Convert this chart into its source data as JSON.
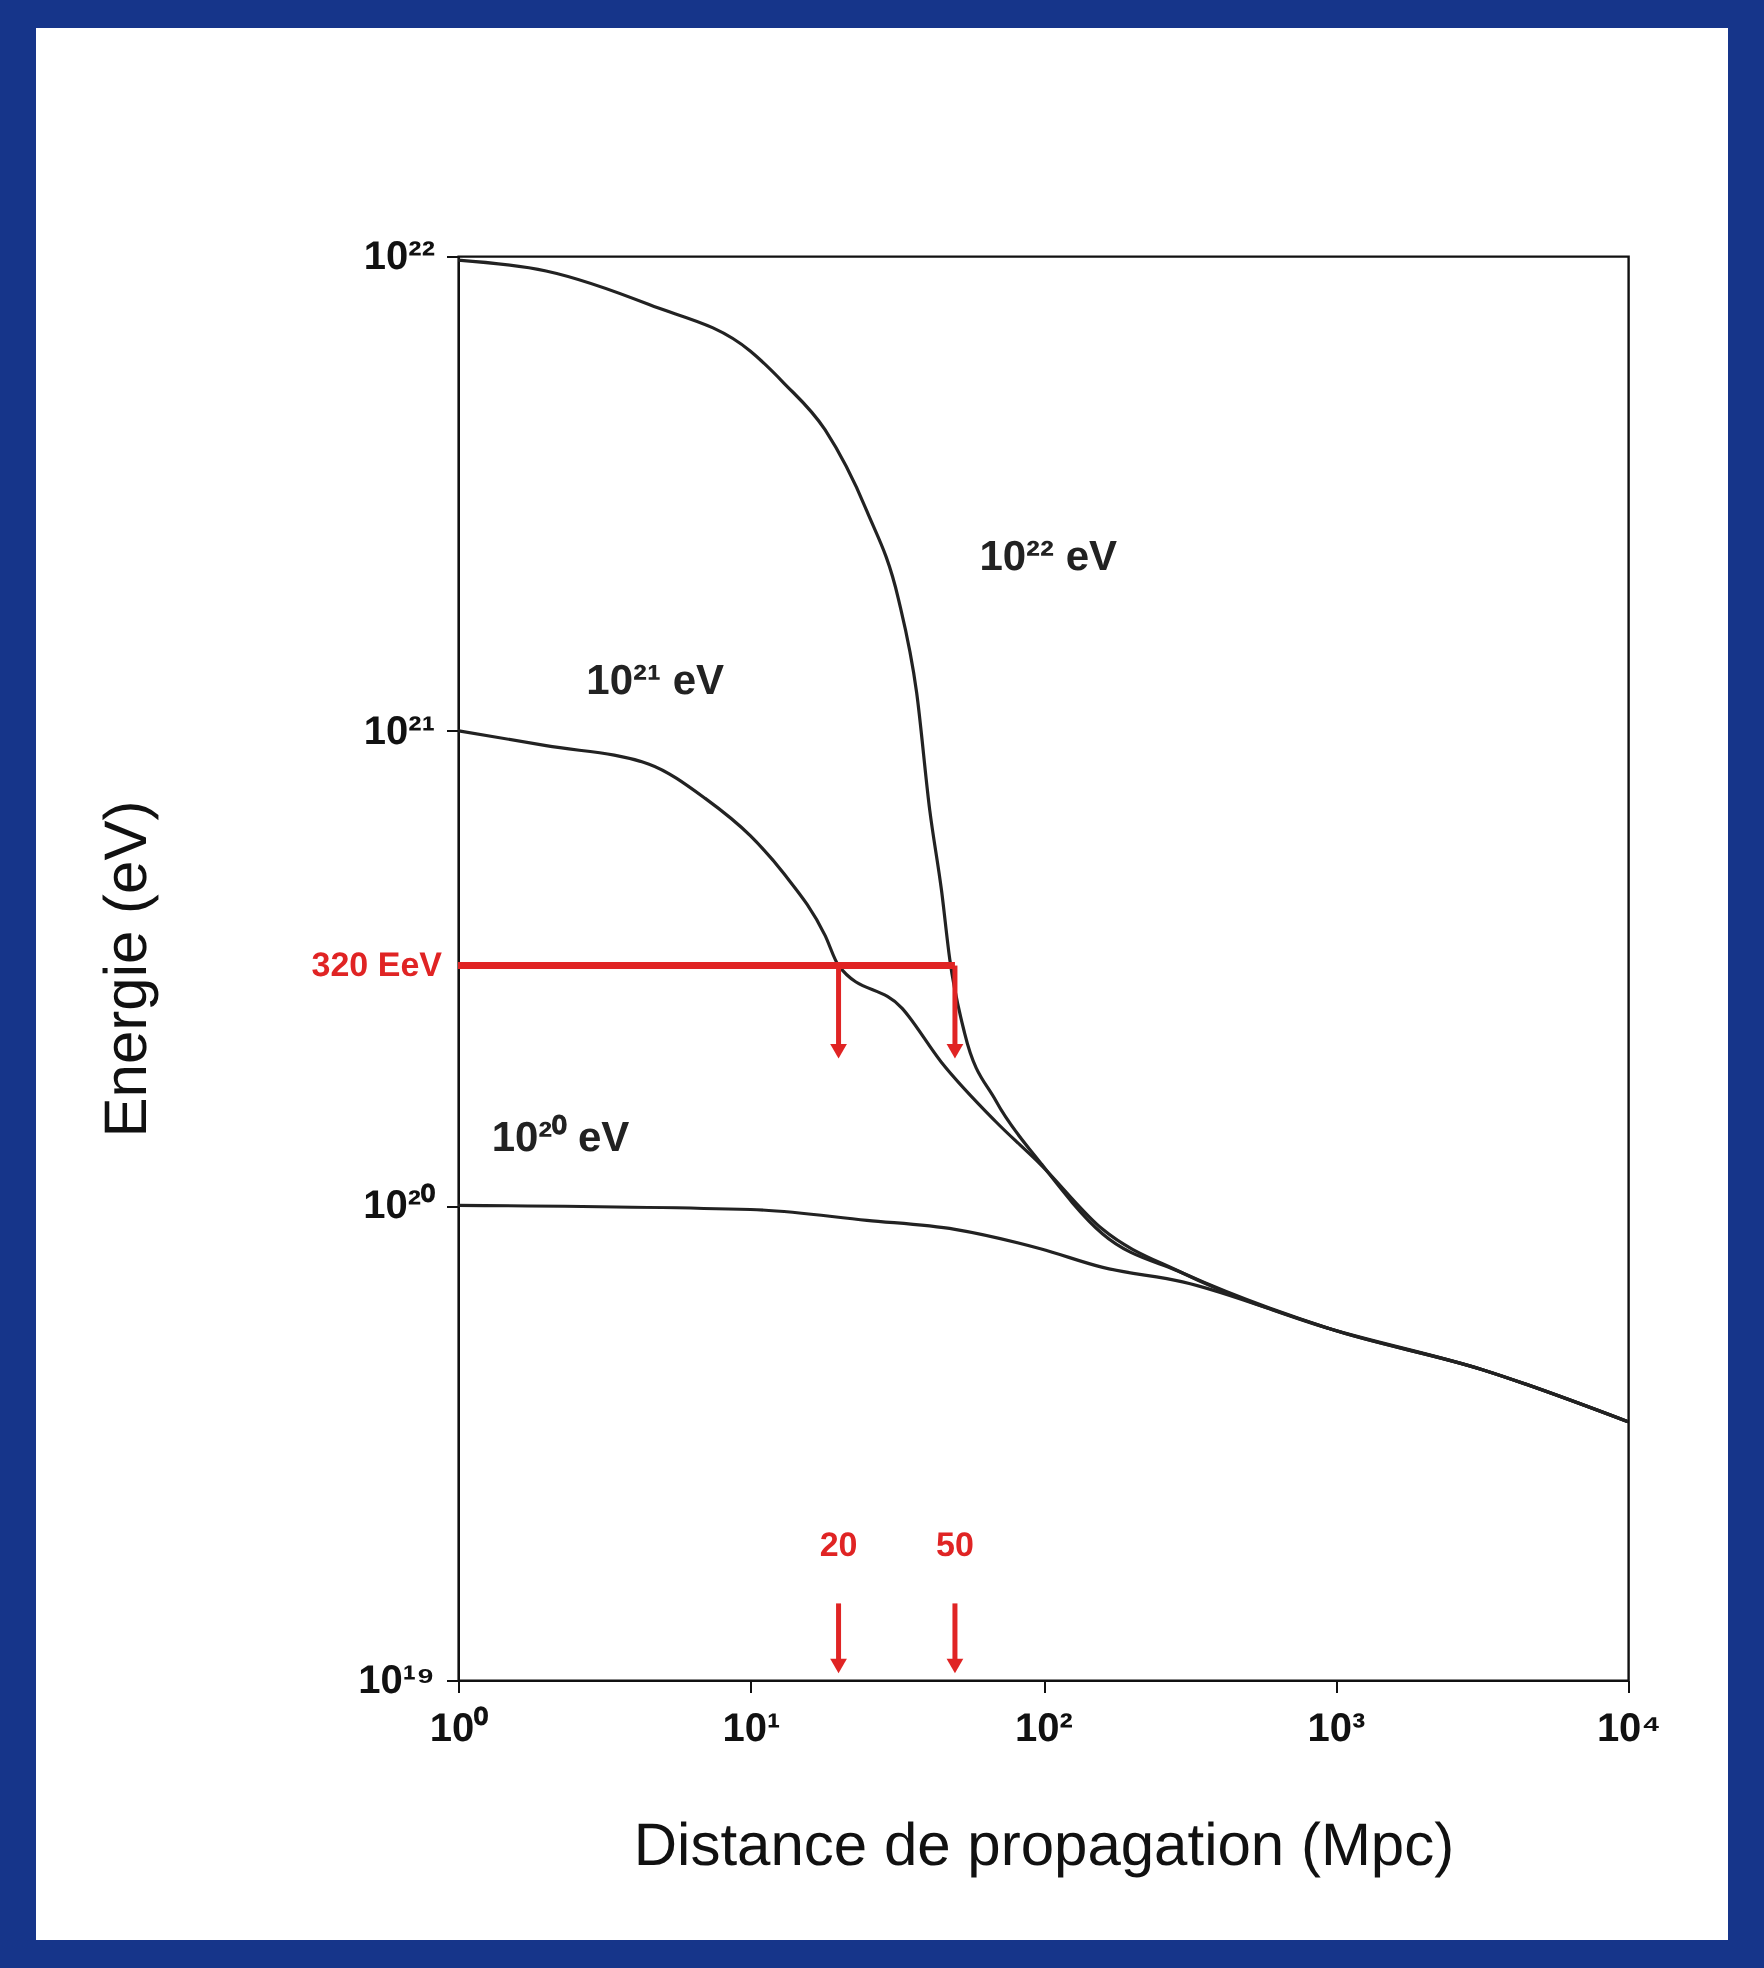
{
  "chart_data": {
    "type": "line",
    "xlabel": "Distance de propagation (Mpc)",
    "ylabel": "Energie (eV)",
    "log": "xy",
    "grid": false,
    "marker": "none",
    "line_style": "solid",
    "xlim": [
      1,
      10000
    ],
    "ylim": [
      1e+19,
      1e+22
    ],
    "xticks": [
      {
        "value": 1,
        "label": "10⁰"
      },
      {
        "value": 10,
        "label": "10¹"
      },
      {
        "value": 100,
        "label": "10²"
      },
      {
        "value": 1000,
        "label": "10³"
      },
      {
        "value": 10000,
        "label": "10⁴"
      }
    ],
    "yticks": [
      {
        "value": 1e+19,
        "label": "10¹⁹"
      },
      {
        "value": 1e+20,
        "label": "10²⁰"
      },
      {
        "value": 1e+21,
        "label": "10²¹"
      },
      {
        "value": 1e+22,
        "label": "10²²"
      }
    ],
    "series": [
      {
        "name": "10²² eV",
        "color": "#222222",
        "x": [
          1,
          2,
          4.5,
          10,
          13,
          18,
          25,
          32,
          37,
          41,
          45,
          48,
          54,
          69,
          98,
          160,
          300,
          950,
          3200,
          10000
        ],
        "values": [
          9.8e+21,
          9.3e+21,
          7.9e+21,
          6.3e+21,
          5.4e+21,
          4.3e+21,
          2.9e+21,
          1.9e+21,
          1.2e+21,
          6.8e+20,
          4.6e+20,
          3.3e+20,
          2.3e+20,
          1.66e+20,
          1.23e+20,
          8.7e+19,
          7.2e+19,
          5.5e+19,
          4.5e+19,
          3.5e+19
        ]
      },
      {
        "name": "10²¹ eV",
        "color": "#222222",
        "x": [
          1,
          2,
          4.5,
          7,
          10,
          13,
          18,
          20,
          33,
          45,
          69,
          98,
          160,
          300,
          950,
          3200,
          10000
        ],
        "values": [
          1e+21,
          9.3e+20,
          8.5e+20,
          7.2e+20,
          6e+20,
          5e+20,
          3.7e+20,
          3.2e+20,
          2.6e+20,
          2e+20,
          1.5e+20,
          1.22e+20,
          8.9e+19,
          7.2e+19,
          5.5e+19,
          4.5e+19,
          3.5e+19
        ]
      },
      {
        "name": "10²⁰ eV",
        "color": "#222222",
        "x": [
          1,
          10,
          25,
          50,
          98,
          160,
          300,
          950,
          3200,
          10000
        ],
        "values": [
          1e+20,
          9.8e+19,
          9.3e+19,
          8.9e+19,
          8.1e+19,
          7.4e+19,
          6.9e+19,
          5.5e+19,
          4.5e+19,
          3.5e+19
        ]
      },
      {
        "color": "#e02424",
        "x": [
          1,
          20,
          50
        ],
        "values": [
          3.2e+20,
          3.2e+20,
          3.2e+20
        ]
      }
    ],
    "annotations": [
      "320 EeV",
      "20",
      "50"
    ]
  }
}
